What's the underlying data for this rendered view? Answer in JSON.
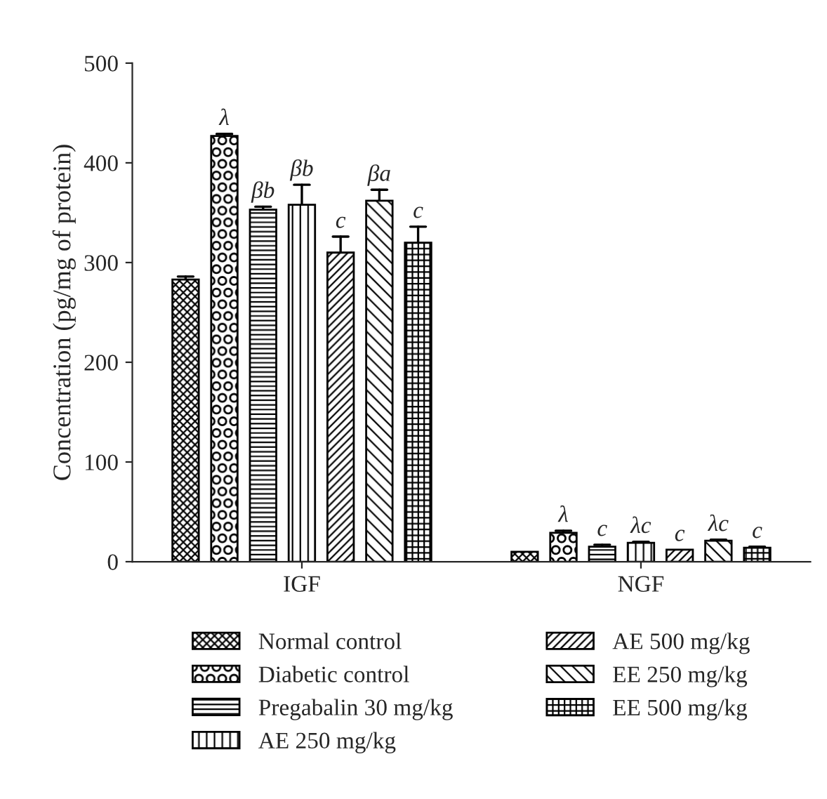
{
  "chart_data": {
    "type": "bar",
    "ylabel": "Concentration (pg/mg of protein)",
    "categories": [
      "IGF",
      "NGF"
    ],
    "series": [
      {
        "name": "Normal control",
        "color": "#000000",
        "values": [
          283,
          10
        ],
        "errors": [
          [
            283,
            286
          ],
          null
        ],
        "value_labels": [
          null,
          null
        ]
      },
      {
        "name": "Diabetic control",
        "color": "#000000",
        "values": [
          427,
          29
        ],
        "errors": [
          [
            427,
            429
          ],
          [
            29,
            31
          ]
        ],
        "value_labels": [
          "λ",
          "λ"
        ]
      },
      {
        "name": "Pregabalin 30 mg/kg",
        "color": "#000000",
        "values": [
          353,
          15
        ],
        "errors": [
          [
            353,
            356
          ],
          [
            15,
            17
          ]
        ],
        "value_labels": [
          "βb",
          "c"
        ]
      },
      {
        "name": "AE 250 mg/kg",
        "color": "#000000",
        "values": [
          358,
          19
        ],
        "errors": [
          [
            358,
            378
          ],
          [
            19,
            20
          ]
        ],
        "value_labels": [
          "βb",
          "λc"
        ]
      },
      {
        "name": "AE 500 mg/kg",
        "color": "#000000",
        "values": [
          310,
          12
        ],
        "errors": [
          [
            310,
            326
          ],
          null
        ],
        "value_labels": [
          "c",
          "c"
        ]
      },
      {
        "name": "EE 250 mg/kg",
        "color": "#000000",
        "values": [
          362,
          21
        ],
        "errors": [
          [
            362,
            373
          ],
          [
            21,
            22
          ]
        ],
        "value_labels": [
          "βa",
          "λc"
        ]
      },
      {
        "name": "EE 500 mg/kg",
        "color": "#000000",
        "values": [
          320,
          14
        ],
        "errors": [
          [
            320,
            336
          ],
          [
            14,
            15
          ]
        ],
        "value_labels": [
          "c",
          "c"
        ]
      }
    ],
    "ylim": [
      0,
      500
    ],
    "yticks": [
      0,
      100,
      200,
      300,
      400,
      500
    ],
    "grid": false,
    "legend": "bottom"
  }
}
